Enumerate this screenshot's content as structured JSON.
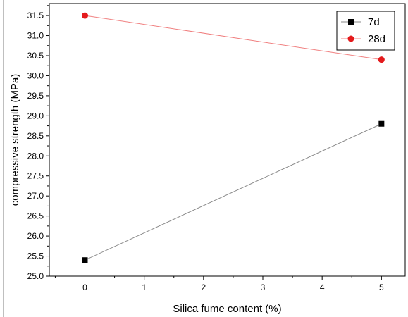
{
  "chart_data": {
    "type": "line",
    "title": "",
    "xlabel": "Silica fume content (%)",
    "ylabel": "compressive strength (MPa)",
    "xlim": [
      -0.6,
      5.4
    ],
    "ylim": [
      25.0,
      31.8
    ],
    "x_ticks": [
      "0",
      "1",
      "2",
      "3",
      "4",
      "5"
    ],
    "y_ticks": [
      "25.0",
      "25.5",
      "26.0",
      "26.5",
      "27.0",
      "27.5",
      "28.0",
      "28.5",
      "29.0",
      "29.5",
      "30.0",
      "30.5",
      "31.0",
      "31.5"
    ],
    "grid": false,
    "legend_position": "top-right",
    "series": [
      {
        "name": "7d",
        "x": [
          0,
          5
        ],
        "y": [
          25.4,
          28.8
        ],
        "marker": "square",
        "marker_color": "#000000",
        "line_color": "#8a8a8a"
      },
      {
        "name": "28d",
        "x": [
          0,
          5
        ],
        "y": [
          31.5,
          30.4
        ],
        "marker": "circle",
        "marker_color": "#e41a1c",
        "line_color": "#f08080"
      }
    ]
  }
}
